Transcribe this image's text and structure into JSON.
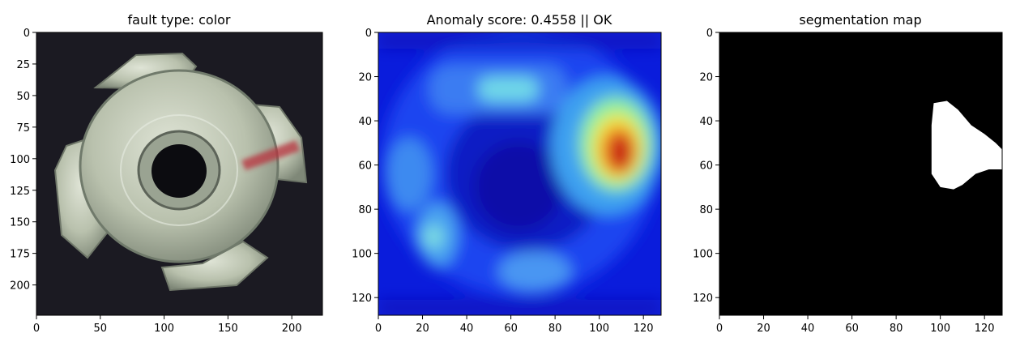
{
  "chart_data": [
    {
      "type": "image",
      "title": "fault type: color",
      "content": "metal tee nut with four prongs, red stain on right side",
      "xticks": [
        0,
        50,
        100,
        150,
        200
      ],
      "yticks": [
        0,
        25,
        50,
        75,
        100,
        125,
        150,
        175,
        200
      ],
      "xlim": [
        0,
        224
      ],
      "ylim": [
        224,
        0
      ],
      "colors": {
        "background": "#1b1a22",
        "nut": "#c9cfc0",
        "nut_dark": "#7d8576",
        "stain": "#b8303c"
      }
    },
    {
      "type": "heatmap",
      "title": "Anomaly score: 0.4558 || OK",
      "colormap": "jet",
      "xticks": [
        0,
        20,
        40,
        60,
        80,
        100,
        120
      ],
      "yticks": [
        0,
        20,
        40,
        60,
        80,
        100,
        120
      ],
      "xlim": [
        0,
        128
      ],
      "ylim": [
        128,
        0
      ],
      "hotspots": [
        {
          "x": 110,
          "y": 54,
          "intensity": 1.0
        },
        {
          "x": 62,
          "y": 27,
          "intensity": 0.45
        },
        {
          "x": 25,
          "y": 92,
          "intensity": 0.4
        },
        {
          "x": 10,
          "y": 65,
          "intensity": 0.35
        },
        {
          "x": 68,
          "y": 110,
          "intensity": 0.35
        }
      ]
    },
    {
      "type": "segmentation",
      "title": "segmentation map",
      "colors": {
        "background": "#000000",
        "mask": "#ffffff"
      },
      "xticks": [
        0,
        20,
        40,
        60,
        80,
        100,
        120
      ],
      "yticks": [
        0,
        20,
        40,
        60,
        80,
        100,
        120
      ],
      "xlim": [
        0,
        128
      ],
      "ylim": [
        128,
        0
      ],
      "mask_polygon": [
        [
          97,
          32
        ],
        [
          103,
          31
        ],
        [
          108,
          35
        ],
        [
          114,
          42
        ],
        [
          120,
          46
        ],
        [
          125,
          50
        ],
        [
          128,
          53
        ],
        [
          128,
          62
        ],
        [
          122,
          62
        ],
        [
          116,
          64
        ],
        [
          110,
          69
        ],
        [
          106,
          71
        ],
        [
          100,
          70
        ],
        [
          96,
          64
        ],
        [
          96,
          56
        ],
        [
          96,
          42
        ]
      ]
    }
  ]
}
